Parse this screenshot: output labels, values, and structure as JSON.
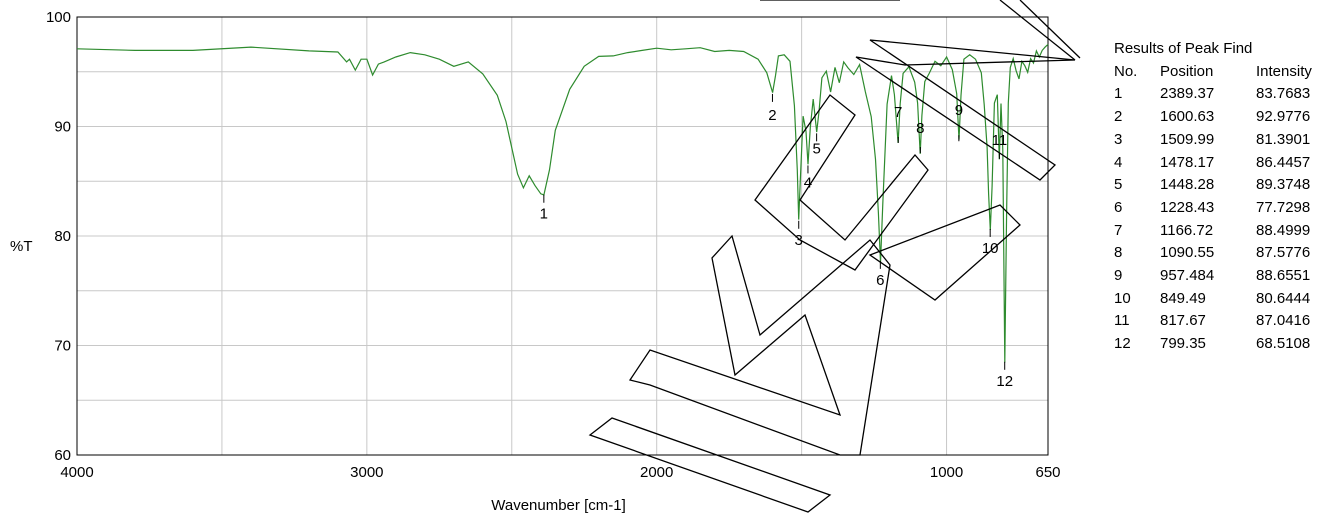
{
  "chart_data": {
    "type": "line",
    "xlabel": "Wavenumber [cm-1]",
    "ylabel": "%T",
    "xlim": [
      4000,
      650
    ],
    "ylim": [
      60,
      100
    ],
    "x_ticks": [
      "4000",
      "3000",
      "2000",
      "1000",
      "650"
    ],
    "y_ticks": [
      "60",
      "70",
      "80",
      "90",
      "100"
    ],
    "grid": true,
    "line_color": "#2e8b2e",
    "series": [
      {
        "x": [
          4000,
          3800,
          3600,
          3400,
          3200,
          3100,
          3070,
          3060,
          3040,
          3020,
          3000,
          2980,
          2960,
          2940,
          2900,
          2850,
          2800,
          2750,
          2700,
          2650,
          2600,
          2550,
          2520,
          2500,
          2480,
          2460,
          2440,
          2420,
          2400,
          2389,
          2370,
          2350,
          2300,
          2250,
          2200,
          2150,
          2100,
          2050,
          2000,
          1950,
          1900,
          1850,
          1800,
          1750,
          1700,
          1650,
          1620,
          1610,
          1600,
          1590,
          1580,
          1560,
          1540,
          1525,
          1515,
          1510,
          1505,
          1495,
          1485,
          1478,
          1470,
          1460,
          1448,
          1440,
          1430,
          1415,
          1400,
          1385,
          1370,
          1355,
          1340,
          1320,
          1300,
          1280,
          1260,
          1245,
          1235,
          1228,
          1220,
          1205,
          1190,
          1180,
          1167,
          1160,
          1150,
          1130,
          1110,
          1100,
          1091,
          1085,
          1075,
          1060,
          1040,
          1020,
          1000,
          980,
          965,
          957,
          950,
          940,
          920,
          900,
          880,
          870,
          860,
          855,
          849,
          843,
          835,
          825,
          818,
          812,
          806,
          799,
          793,
          787,
          780,
          770,
          760,
          750,
          740,
          730,
          720,
          710,
          700,
          690,
          680,
          670,
          660,
          650
        ],
        "y": [
          97.1,
          97.0,
          96.9,
          97.1,
          97.0,
          96.8,
          95.8,
          96.3,
          95.2,
          96.1,
          96.0,
          94.8,
          95.7,
          95.8,
          96.5,
          96.8,
          96.5,
          96.0,
          95.6,
          95.9,
          94.7,
          93.0,
          90.5,
          88.0,
          85.5,
          84.5,
          85.5,
          84.5,
          84.0,
          83.8,
          86.0,
          89.5,
          93.5,
          95.5,
          96.3,
          96.6,
          96.8,
          96.9,
          97.0,
          97.1,
          97.1,
          97.1,
          97.0,
          97.0,
          96.8,
          96.0,
          95.0,
          94.0,
          93.0,
          94.8,
          96.5,
          96.5,
          95.8,
          92.0,
          86.0,
          81.4,
          85.0,
          91.0,
          89.5,
          86.4,
          90.0,
          92.5,
          89.4,
          91.5,
          94.5,
          95.0,
          93.0,
          95.5,
          94.0,
          95.8,
          95.5,
          94.8,
          95.6,
          93.0,
          91.0,
          87.0,
          82.0,
          77.7,
          83.0,
          92.0,
          94.5,
          93.0,
          88.5,
          92.0,
          95.0,
          95.5,
          94.0,
          92.0,
          87.6,
          91.0,
          94.0,
          95.0,
          96.0,
          95.5,
          96.2,
          95.3,
          93.0,
          88.7,
          93.0,
          96.2,
          96.5,
          96.0,
          95.0,
          92.0,
          88.0,
          84.0,
          80.6,
          84.5,
          92.0,
          93.0,
          87.0,
          92.0,
          88.0,
          68.5,
          82.0,
          92.0,
          95.5,
          96.2,
          95.0,
          94.5,
          96.0,
          95.5,
          94.8,
          96.3,
          95.8,
          96.8,
          96.5,
          97.0,
          97.2,
          97.5
        ]
      }
    ],
    "peak_markers": [
      {
        "no": "1",
        "x": 2389.37,
        "y": 83.7683
      },
      {
        "no": "2",
        "x": 1600.63,
        "y": 92.9776
      },
      {
        "no": "3",
        "x": 1509.99,
        "y": 81.3901
      },
      {
        "no": "4",
        "x": 1478.17,
        "y": 86.4457
      },
      {
        "no": "5",
        "x": 1448.28,
        "y": 89.3748
      },
      {
        "no": "6",
        "x": 1228.43,
        "y": 77.7298
      },
      {
        "no": "7",
        "x": 1166.72,
        "y": 88.4999
      },
      {
        "no": "8",
        "x": 1090.55,
        "y": 87.5776
      },
      {
        "no": "9",
        "x": 957.484,
        "y": 88.6551
      },
      {
        "no": "10",
        "x": 849.49,
        "y": 80.6444
      },
      {
        "no": "11",
        "x": 817.67,
        "y": 87.0416
      },
      {
        "no": "12",
        "x": 799.35,
        "y": 68.5108
      }
    ]
  },
  "peak_table": {
    "title": "Results of Peak Find",
    "headers": [
      "No.",
      "Position",
      "Intensity"
    ],
    "rows": [
      [
        "1",
        "2389.37",
        "83.7683"
      ],
      [
        "2",
        "1600.63",
        "92.9776"
      ],
      [
        "3",
        "1509.99",
        "81.3901"
      ],
      [
        "4",
        "1478.17",
        "86.4457"
      ],
      [
        "5",
        "1448.28",
        "89.3748"
      ],
      [
        "6",
        "1228.43",
        "77.7298"
      ],
      [
        "7",
        "1166.72",
        "88.4999"
      ],
      [
        "8",
        "1090.55",
        "87.5776"
      ],
      [
        "9",
        "957.484",
        "88.6551"
      ],
      [
        "10",
        "849.49",
        "80.6444"
      ],
      [
        "11",
        "817.67",
        "87.0416"
      ],
      [
        "12",
        "799.35",
        "68.5108"
      ]
    ]
  },
  "watermark": {
    "text": "IMC",
    "color": "#000000"
  }
}
